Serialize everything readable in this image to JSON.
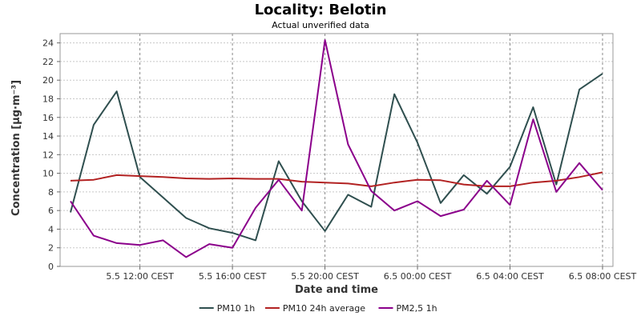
{
  "chart_data": {
    "type": "line",
    "title": "Locality: Belotin",
    "subtitle": "Actual unverified data",
    "xlabel": "Date and time",
    "ylabel": "Concentration [µg·m⁻³]",
    "ylim": [
      0,
      25
    ],
    "yticks": [
      "0",
      "2",
      "4",
      "6",
      "8",
      "10",
      "12",
      "14",
      "16",
      "18",
      "20",
      "22",
      "24"
    ],
    "x": [
      "5.5 09:00",
      "5.5 10:00",
      "5.5 11:00",
      "5.5 12:00",
      "5.5 13:00",
      "5.5 14:00",
      "5.5 15:00",
      "5.5 16:00",
      "5.5 17:00",
      "5.5 18:00",
      "5.5 19:00",
      "5.5 20:00",
      "5.5 21:00",
      "5.5 22:00",
      "5.5 23:00",
      "6.5 00:00",
      "6.5 01:00",
      "6.5 02:00",
      "6.5 03:00",
      "6.5 04:00",
      "6.5 05:00",
      "6.5 06:00",
      "6.5 07:00",
      "6.5 08:00"
    ],
    "xticks": [
      {
        "label": "5.5 12:00 CEST",
        "at": "5.5 12:00"
      },
      {
        "label": "5.5 16:00 CEST",
        "at": "5.5 16:00"
      },
      {
        "label": "5.5 20:00 CEST",
        "at": "5.5 20:00"
      },
      {
        "label": "6.5 00:00 CEST",
        "at": "6.5 00:00"
      },
      {
        "label": "6.5 04:00 CEST",
        "at": "6.5 04:00"
      },
      {
        "label": "6.5 08:00 CEST",
        "at": "6.5 08:00"
      }
    ],
    "grid": true,
    "legend_position": "bottom",
    "series": [
      {
        "name": "PM10 1h",
        "color": "#2f4f4f",
        "values": [
          5.8,
          15.2,
          18.8,
          9.6,
          7.4,
          5.2,
          4.1,
          3.6,
          2.8,
          11.3,
          7.0,
          3.8,
          7.7,
          6.4,
          18.5,
          13.3,
          6.8,
          9.8,
          7.8,
          10.7,
          17.1,
          8.8,
          19.0,
          20.7
        ]
      },
      {
        "name": "PM10 24h average",
        "color": "#b22222",
        "values": [
          9.2,
          9.3,
          9.8,
          9.7,
          9.6,
          9.45,
          9.4,
          9.45,
          9.4,
          9.4,
          9.1,
          9.0,
          8.9,
          8.6,
          9.0,
          9.3,
          9.25,
          8.8,
          8.6,
          8.6,
          9.0,
          9.2,
          9.6,
          10.1
        ]
      },
      {
        "name": "PM2,5 1h",
        "color": "#8b008b",
        "values": [
          7.0,
          3.3,
          2.5,
          2.3,
          2.8,
          1.0,
          2.4,
          2.0,
          6.3,
          9.3,
          6.0,
          24.3,
          13.1,
          8.1,
          6.0,
          7.0,
          5.4,
          6.1,
          9.2,
          6.6,
          15.8,
          8.0,
          11.1,
          8.2
        ]
      }
    ]
  }
}
